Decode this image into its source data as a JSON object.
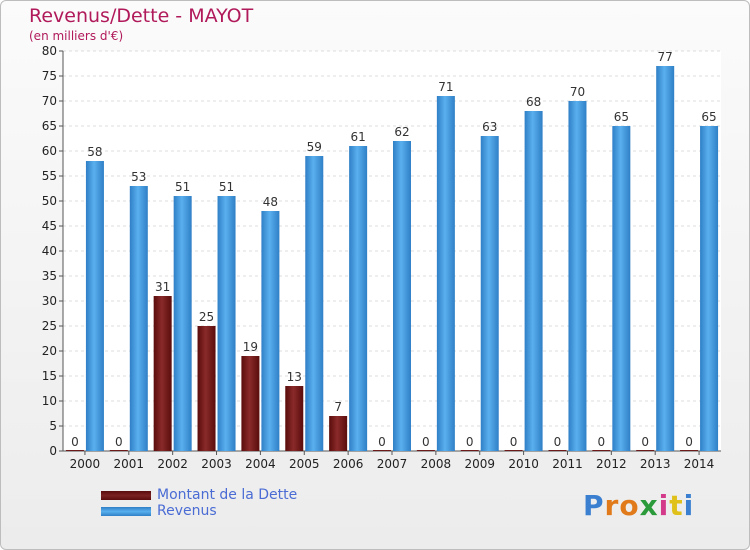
{
  "chart_data": {
    "type": "bar",
    "title": "Revenus/Dette - MAYOT",
    "subtitle": "(en milliers d'€)",
    "categories": [
      "2000",
      "2001",
      "2002",
      "2003",
      "2004",
      "2005",
      "2006",
      "2007",
      "2008",
      "2009",
      "2010",
      "2011",
      "2012",
      "2013",
      "2014"
    ],
    "series": [
      {
        "name": "Montant de la Dette",
        "color": "#6e1a1a",
        "values": [
          0,
          0,
          31,
          25,
          19,
          13,
          7,
          0,
          0,
          0,
          0,
          0,
          0,
          0,
          0
        ]
      },
      {
        "name": "Revenus",
        "color": "#3d8fd6",
        "values": [
          58,
          53,
          51,
          51,
          48,
          59,
          61,
          62,
          71,
          63,
          68,
          70,
          65,
          77,
          65
        ]
      }
    ],
    "yticks": [
      0,
      5,
      10,
      15,
      20,
      25,
      30,
      35,
      40,
      45,
      50,
      55,
      60,
      65,
      70,
      75,
      80
    ],
    "ylim": [
      0,
      80
    ],
    "grid": true,
    "legend_position": "bottom-left"
  },
  "brand": {
    "text": "Proxiti",
    "letters": [
      "P",
      "r",
      "o",
      "x",
      "i",
      "t",
      "i"
    ],
    "colors": [
      "#3a7fd0",
      "#e07a1a",
      "#e07a1a",
      "#2a9a3a",
      "#d43a8a",
      "#e0c01a",
      "#3a7fd0"
    ]
  }
}
